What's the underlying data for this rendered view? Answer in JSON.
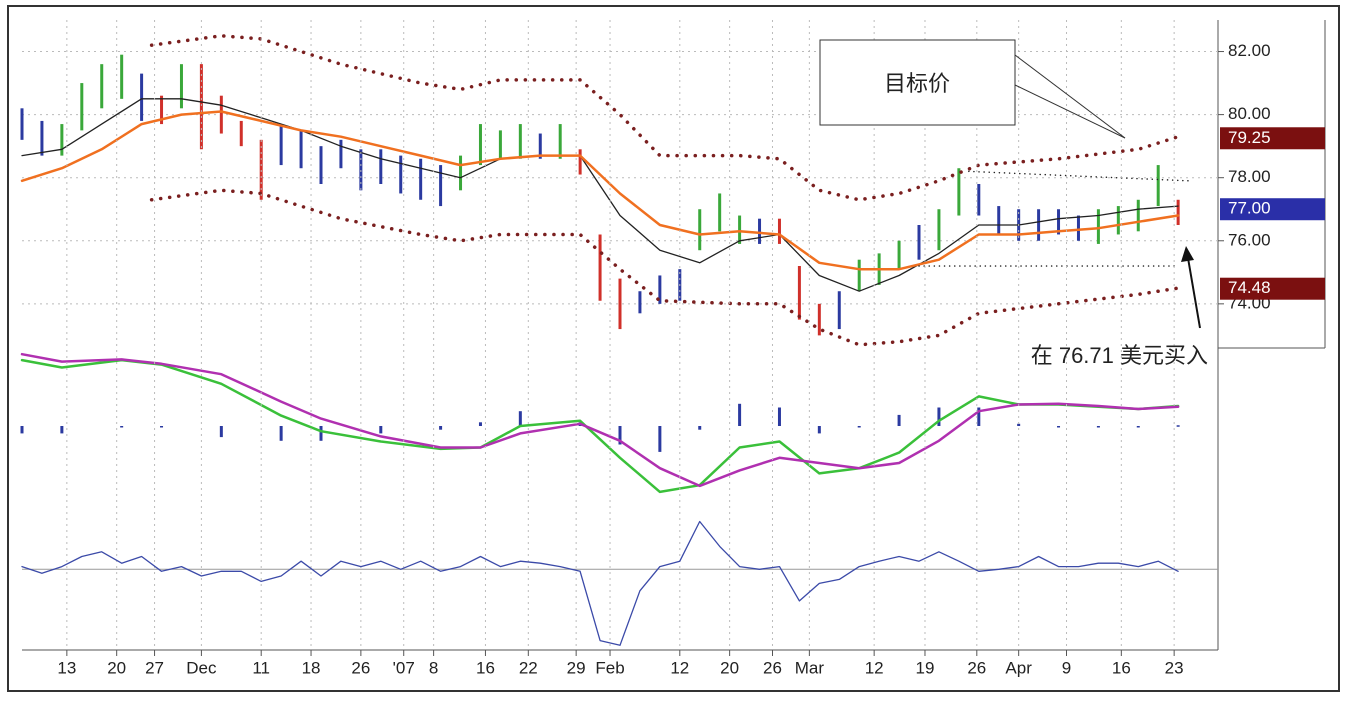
{
  "chart_data": [
    {
      "type": "range-bar",
      "xlim": [
        0,
        120
      ],
      "ylim": [
        72.6,
        83.0
      ],
      "grid": true,
      "yticks": [
        {
          "value": 74,
          "label": "74.00"
        },
        {
          "value": 76,
          "label": "76.00"
        },
        {
          "value": 78,
          "label": "78.00"
        },
        {
          "value": 80,
          "label": "80.00"
        },
        {
          "value": 82,
          "label": "82.00"
        }
      ],
      "series": [
        {
          "style": "bars",
          "color": "#3aa83a",
          "x": [
            4,
            6,
            8,
            10,
            16,
            44,
            46,
            48,
            50,
            54,
            68,
            70,
            72,
            84,
            86,
            88,
            92,
            94,
            108,
            110,
            112,
            114
          ],
          "high": [
            79.7,
            81.0,
            81.6,
            81.9,
            81.6,
            78.7,
            79.7,
            79.5,
            79.7,
            79.7,
            77.0,
            77.5,
            76.8,
            75.4,
            75.6,
            76.0,
            77.0,
            78.3,
            77.0,
            77.1,
            77.3,
            78.4
          ],
          "low": [
            78.7,
            79.5,
            80.2,
            80.5,
            80.2,
            77.6,
            78.4,
            78.6,
            78.6,
            78.6,
            75.7,
            76.3,
            75.9,
            74.4,
            74.6,
            75.1,
            75.7,
            76.8,
            75.9,
            76.2,
            76.3,
            77.1
          ]
        },
        {
          "style": "bars",
          "color": "#2b3aa0",
          "x": [
            0,
            2,
            12,
            26,
            28,
            30,
            32,
            34,
            36,
            38,
            40,
            42,
            52,
            62,
            64,
            66,
            74,
            82,
            90,
            96,
            98,
            100,
            102,
            104,
            106
          ],
          "high": [
            80.2,
            79.8,
            81.3,
            79.7,
            79.5,
            79.0,
            79.2,
            78.9,
            78.9,
            78.7,
            78.6,
            78.4,
            79.4,
            74.4,
            74.9,
            75.1,
            76.7,
            74.4,
            76.5,
            77.8,
            77.1,
            77.0,
            77.0,
            77.0,
            76.8
          ],
          "low": [
            79.2,
            78.7,
            79.8,
            78.4,
            78.3,
            77.8,
            78.3,
            77.6,
            77.8,
            77.5,
            77.3,
            77.1,
            78.6,
            73.7,
            74.0,
            74.1,
            75.9,
            73.2,
            75.4,
            76.8,
            76.2,
            76.0,
            76.0,
            76.2,
            76.0
          ]
        },
        {
          "style": "bars",
          "color": "#d0302a",
          "x": [
            14,
            18,
            20,
            22,
            24,
            56,
            58,
            60,
            76,
            78,
            80,
            116
          ],
          "high": [
            80.6,
            81.6,
            80.6,
            79.8,
            79.2,
            78.9,
            76.2,
            74.8,
            76.7,
            75.2,
            74.0,
            77.3
          ],
          "low": [
            79.7,
            78.9,
            79.4,
            79.0,
            77.3,
            78.1,
            74.1,
            73.2,
            75.9,
            73.5,
            73.0,
            76.5
          ]
        },
        {
          "style": "line",
          "color": "#222222",
          "x": [
            0,
            4,
            8,
            12,
            16,
            20,
            24,
            28,
            32,
            36,
            40,
            44,
            48,
            52,
            56,
            60,
            64,
            68,
            72,
            76,
            80,
            84,
            88,
            92,
            96,
            100,
            104,
            108,
            112,
            116
          ],
          "values": [
            78.7,
            78.9,
            79.7,
            80.5,
            80.5,
            80.3,
            79.9,
            79.5,
            79.0,
            78.6,
            78.3,
            78.0,
            78.6,
            78.7,
            78.7,
            76.8,
            75.7,
            75.3,
            76.0,
            76.2,
            74.9,
            74.4,
            74.9,
            75.6,
            76.5,
            76.5,
            76.7,
            76.8,
            77.0,
            77.1
          ]
        },
        {
          "style": "line-thick",
          "color": "#f07020",
          "x": [
            0,
            4,
            8,
            12,
            16,
            20,
            24,
            28,
            32,
            36,
            40,
            44,
            48,
            52,
            56,
            60,
            64,
            68,
            72,
            76,
            80,
            84,
            88,
            92,
            96,
            100,
            104,
            108,
            112,
            116
          ],
          "values": [
            77.9,
            78.3,
            78.9,
            79.7,
            80.0,
            80.1,
            79.8,
            79.5,
            79.3,
            79.0,
            78.7,
            78.4,
            78.6,
            78.7,
            78.7,
            77.5,
            76.5,
            76.2,
            76.3,
            76.2,
            75.3,
            75.1,
            75.1,
            75.4,
            76.2,
            76.2,
            76.3,
            76.4,
            76.6,
            76.8
          ]
        },
        {
          "style": "dots",
          "color": "#7a1f1f",
          "x": [
            13,
            20,
            24,
            32,
            40,
            44,
            48,
            56,
            60,
            64,
            72,
            76,
            80,
            84,
            88,
            92,
            96,
            104,
            112,
            116
          ],
          "values": [
            82.2,
            82.5,
            82.4,
            81.6,
            81.0,
            80.8,
            81.1,
            81.1,
            80.0,
            78.7,
            78.7,
            78.6,
            77.6,
            77.3,
            77.5,
            77.9,
            78.4,
            78.6,
            78.9,
            79.3
          ]
        },
        {
          "style": "dots",
          "color": "#7a1f1f",
          "x": [
            13,
            20,
            24,
            32,
            40,
            44,
            48,
            56,
            60,
            64,
            72,
            76,
            80,
            84,
            88,
            92,
            96,
            104,
            112,
            116
          ],
          "values": [
            77.3,
            77.6,
            77.5,
            76.7,
            76.2,
            76.0,
            76.2,
            76.2,
            75.1,
            74.1,
            74.0,
            74.0,
            73.2,
            72.7,
            72.8,
            73.0,
            73.7,
            74.0,
            74.3,
            74.5
          ]
        },
        {
          "style": "thin-dots",
          "color": "#222222",
          "x": [
            95,
            117
          ],
          "values": [
            78.2,
            77.9
          ]
        },
        {
          "style": "thin-dots",
          "color": "#222222",
          "x": [
            90,
            116
          ],
          "values": [
            75.2,
            75.2
          ]
        }
      ],
      "price_markers": [
        {
          "value": 79.25,
          "label": "79.25",
          "color": "#7b1010"
        },
        {
          "value": 77,
          "label": "77.00",
          "color": "#2a2fa8"
        },
        {
          "value": 74.48,
          "label": "74.48",
          "color": "#7b1010"
        }
      ],
      "annotations": [
        "目标价",
        "在 76.71 美元买入"
      ]
    },
    {
      "type": "line",
      "xlim": [
        0,
        120
      ],
      "ylim": [
        -1,
        1
      ],
      "series": [
        {
          "style": "histogram",
          "color": "#2b3aa0",
          "x": [
            0,
            4,
            10,
            14,
            20,
            26,
            30,
            36,
            42,
            46,
            50,
            56,
            60,
            64,
            68,
            72,
            76,
            80,
            84,
            88,
            92,
            96,
            100,
            104,
            108,
            112,
            116
          ],
          "values": [
            -0.1,
            -0.1,
            0,
            0,
            -0.15,
            -0.2,
            -0.2,
            -0.1,
            -0.05,
            0.05,
            0.2,
            0.05,
            -0.25,
            -0.35,
            -0.05,
            0.3,
            0.25,
            -0.1,
            0,
            0.15,
            0.25,
            0.25,
            0.03,
            0,
            0,
            0,
            0.01
          ]
        },
        {
          "style": "line-thick",
          "color": "#3ac03a",
          "x": [
            0,
            4,
            10,
            14,
            20,
            26,
            30,
            36,
            42,
            46,
            50,
            56,
            60,
            64,
            68,
            72,
            76,
            80,
            84,
            88,
            92,
            96,
            100,
            104,
            108,
            112,
            116
          ],
          "values": [
            0.89,
            0.79,
            0.89,
            0.83,
            0.57,
            0.14,
            -0.07,
            -0.21,
            -0.31,
            -0.29,
            0,
            0.07,
            -0.43,
            -0.89,
            -0.8,
            -0.29,
            -0.21,
            -0.64,
            -0.57,
            -0.36,
            0.07,
            0.4,
            0.29,
            0.29,
            0.26,
            0.23,
            0.27
          ]
        },
        {
          "style": "line-thick",
          "color": "#b030b0",
          "x": [
            0,
            4,
            10,
            14,
            20,
            26,
            30,
            36,
            42,
            46,
            50,
            56,
            60,
            64,
            68,
            72,
            76,
            80,
            84,
            88,
            92,
            96,
            100,
            104,
            108,
            112,
            116
          ],
          "values": [
            0.97,
            0.87,
            0.9,
            0.84,
            0.7,
            0.33,
            0.1,
            -0.14,
            -0.29,
            -0.29,
            -0.1,
            0.03,
            -0.2,
            -0.57,
            -0.81,
            -0.6,
            -0.43,
            -0.5,
            -0.57,
            -0.5,
            -0.2,
            0.2,
            0.29,
            0.3,
            0.27,
            0.23,
            0.26
          ]
        }
      ]
    },
    {
      "type": "line",
      "xlim": [
        0,
        120
      ],
      "ylim": [
        -1.2,
        1
      ],
      "series": [
        {
          "style": "line",
          "color": "#3b4aa8",
          "x": [
            0,
            2,
            4,
            6,
            8,
            10,
            12,
            14,
            16,
            18,
            20,
            22,
            24,
            26,
            28,
            30,
            32,
            34,
            36,
            38,
            40,
            42,
            44,
            46,
            48,
            50,
            52,
            54,
            56,
            58,
            60,
            62,
            64,
            66,
            68,
            70,
            72,
            74,
            76,
            78,
            80,
            82,
            84,
            86,
            88,
            90,
            92,
            94,
            96,
            98,
            100,
            102,
            104,
            106,
            108,
            110,
            112,
            114,
            116
          ],
          "values": [
            0.04,
            -0.06,
            0.04,
            0.19,
            0.26,
            0.09,
            0.19,
            -0.03,
            0.04,
            -0.1,
            -0.03,
            -0.03,
            -0.18,
            -0.1,
            0.12,
            -0.1,
            0.12,
            0.04,
            0.12,
            0,
            0.12,
            -0.03,
            0.04,
            0.19,
            0.04,
            0.12,
            0.09,
            0.04,
            -0.03,
            -1.06,
            -1.13,
            -0.32,
            0.04,
            0.12,
            0.71,
            0.34,
            0.04,
            0,
            0.04,
            -0.47,
            -0.21,
            -0.15,
            0.04,
            0.12,
            0.19,
            0.12,
            0.26,
            0.12,
            -0.03,
            0,
            0.04,
            0.19,
            0.04,
            0.04,
            0.09,
            0.09,
            0.04,
            0.12,
            -0.03
          ]
        }
      ],
      "xticks": [
        {
          "value": 4.5,
          "label": "13"
        },
        {
          "value": 9.5,
          "label": "20"
        },
        {
          "value": 13.3,
          "label": "27"
        },
        {
          "value": 18,
          "label": "Dec"
        },
        {
          "value": 24,
          "label": "11"
        },
        {
          "value": 29,
          "label": "18"
        },
        {
          "value": 34,
          "label": "26"
        },
        {
          "value": 38.3,
          "label": "'07"
        },
        {
          "value": 41.3,
          "label": "8"
        },
        {
          "value": 46.5,
          "label": "16"
        },
        {
          "value": 50.8,
          "label": "22"
        },
        {
          "value": 55.6,
          "label": "29"
        },
        {
          "value": 59,
          "label": "Feb"
        },
        {
          "value": 66,
          "label": "12"
        },
        {
          "value": 71,
          "label": "20"
        },
        {
          "value": 75.3,
          "label": "26"
        },
        {
          "value": 79,
          "label": "Mar"
        },
        {
          "value": 85.5,
          "label": "12"
        },
        {
          "value": 90.6,
          "label": "19"
        },
        {
          "value": 95.8,
          "label": "26"
        },
        {
          "value": 100,
          "label": "Apr"
        },
        {
          "value": 104.8,
          "label": "9"
        },
        {
          "value": 110.3,
          "label": "16"
        },
        {
          "value": 115.6,
          "label": "23"
        }
      ]
    }
  ]
}
